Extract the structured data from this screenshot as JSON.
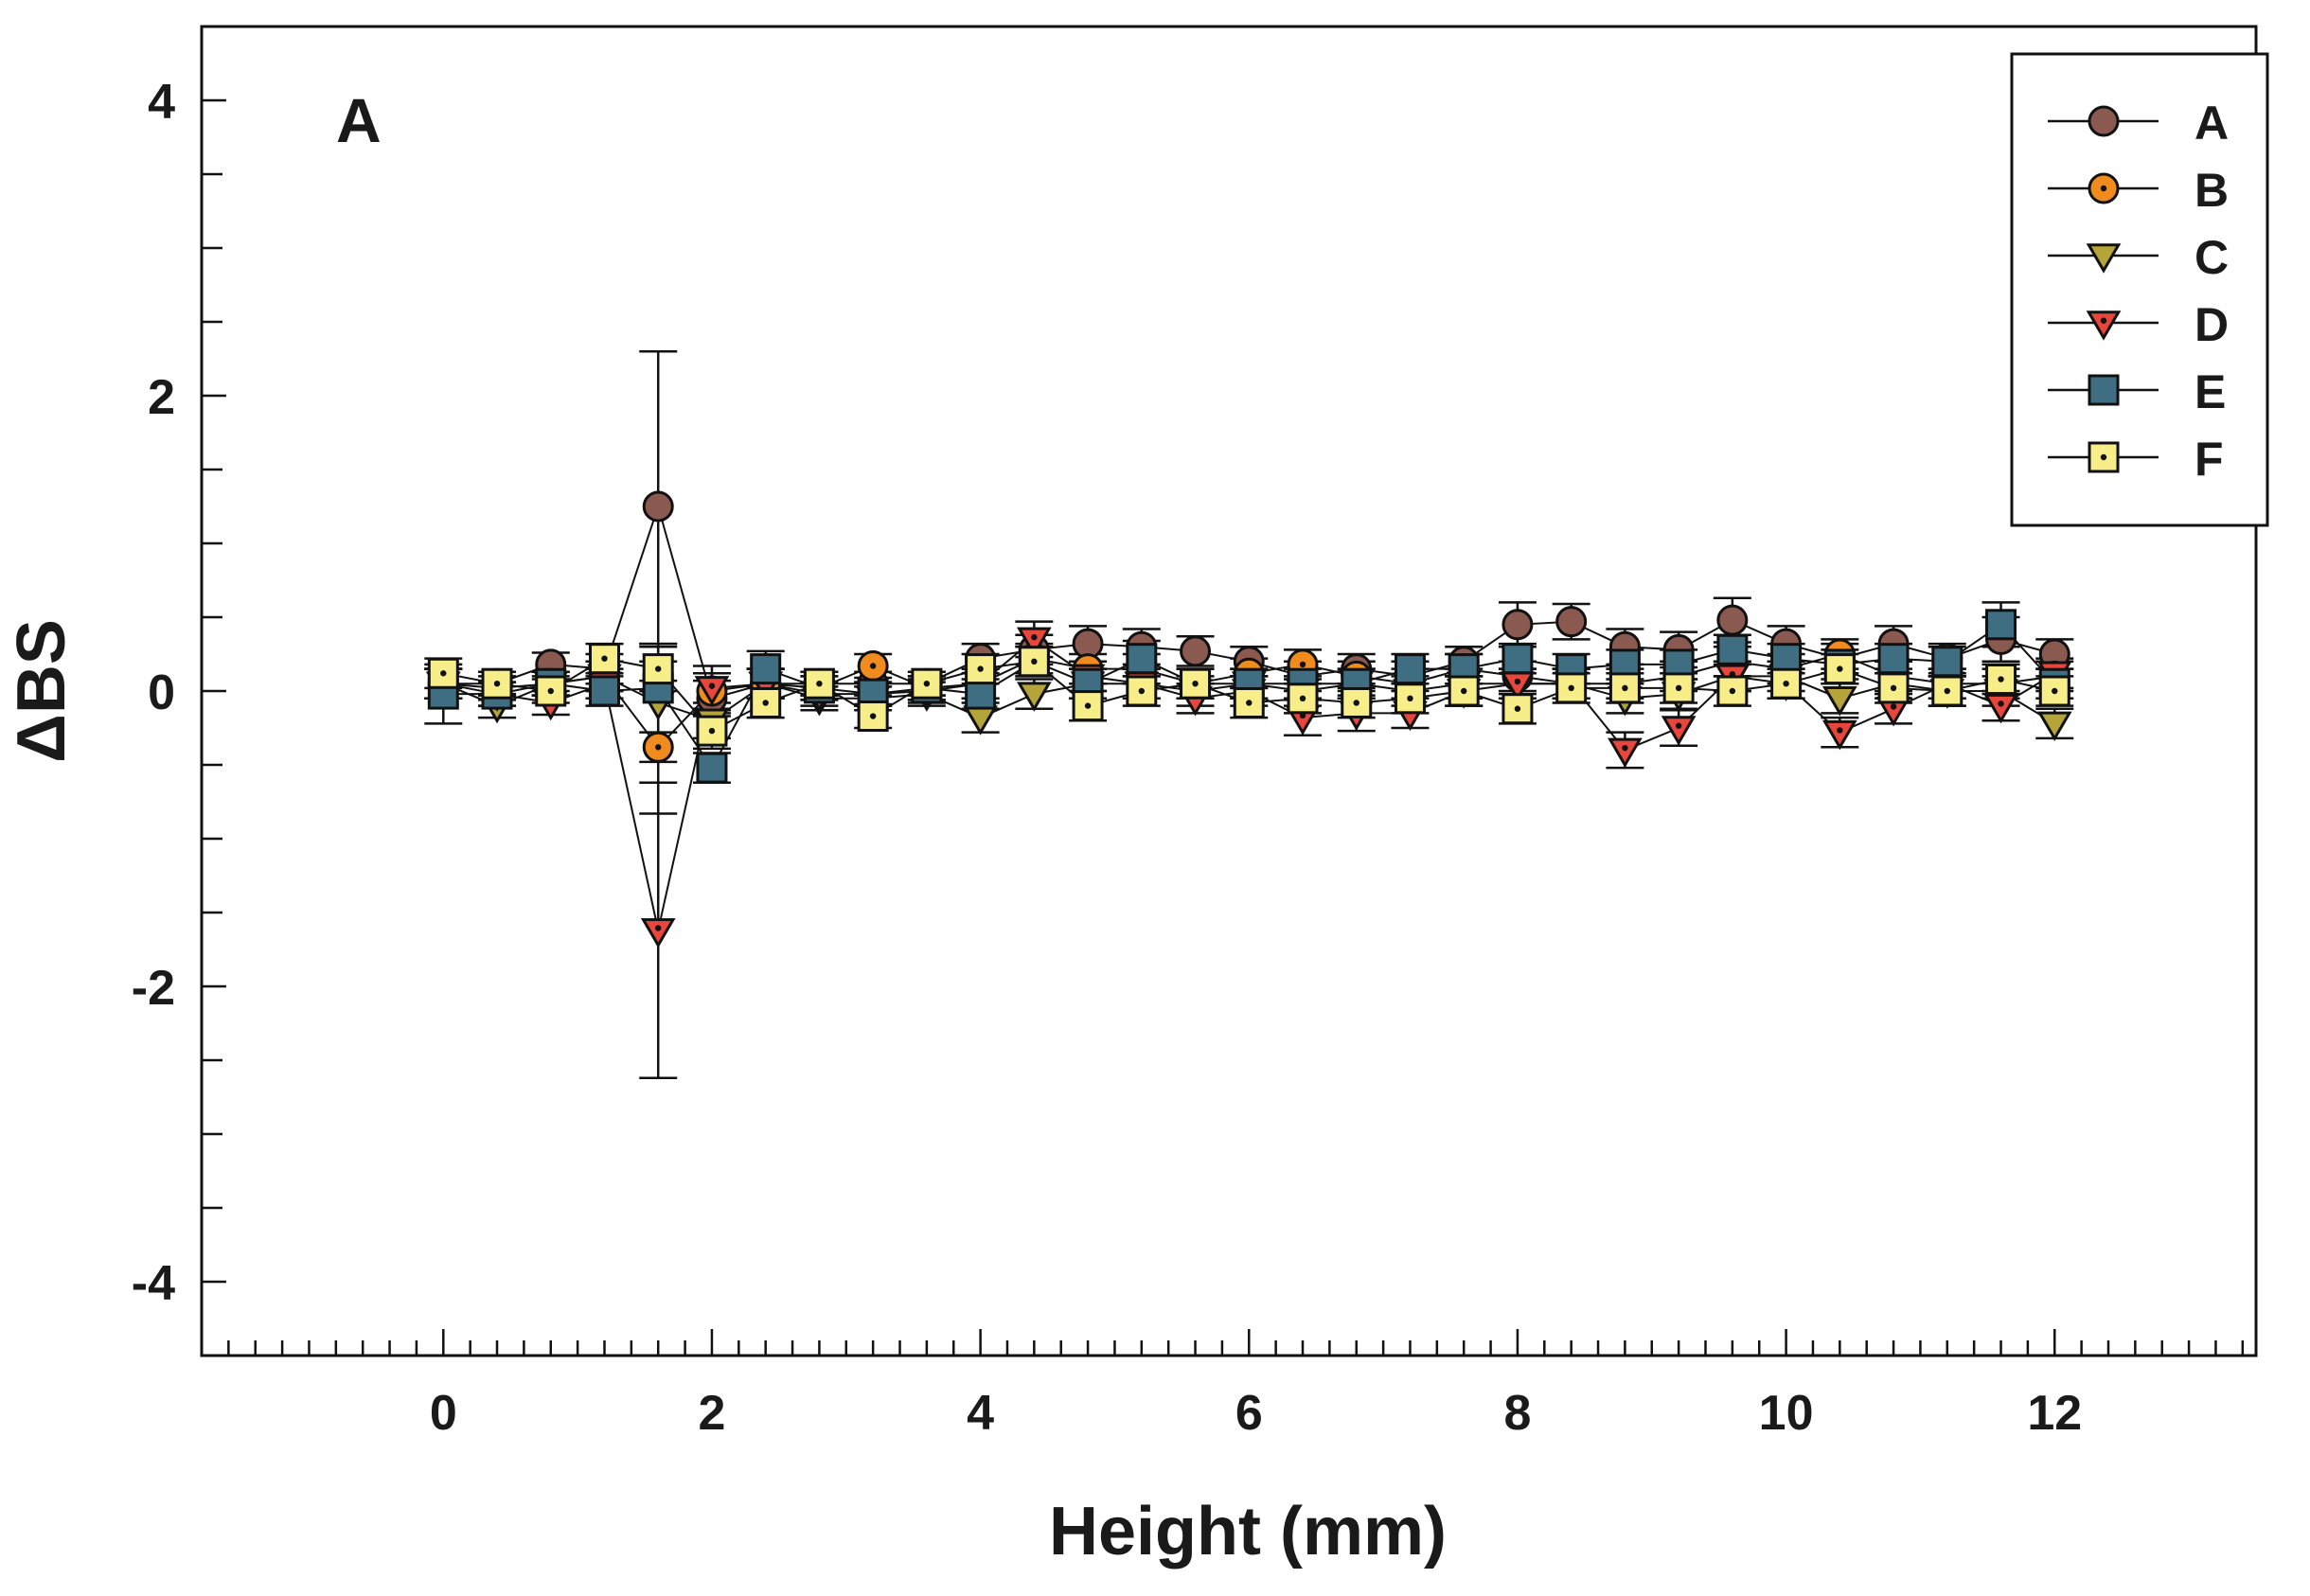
{
  "chart_data": {
    "type": "line",
    "panel_label": "A",
    "xlabel": "Height (mm)",
    "ylabel": "ΔBS",
    "xlim": [
      -1.8,
      13.5
    ],
    "ylim": [
      -4.5,
      4.5
    ],
    "x_ticks": [
      0,
      2,
      4,
      6,
      8,
      10,
      12
    ],
    "y_ticks": [
      4,
      2,
      0,
      -2,
      -4
    ],
    "x_tick_labels": [
      "0",
      "2",
      "4",
      "6",
      "8",
      "10",
      "12"
    ],
    "y_tick_labels": [
      "4",
      "2",
      "0",
      "-2",
      "-4"
    ],
    "legend_position": "top-right",
    "grid": false,
    "x": [
      0,
      0.4,
      0.8,
      1.2,
      1.6,
      2.0,
      2.4,
      2.8,
      3.2,
      3.6,
      4.0,
      4.4,
      4.8,
      5.2,
      5.6,
      6.0,
      6.4,
      6.8,
      7.2,
      7.6,
      8.0,
      8.4,
      8.8,
      9.2,
      9.6,
      10.0,
      10.4,
      10.8,
      11.2,
      11.6,
      12.0
    ],
    "series": [
      {
        "name": "A",
        "marker": "circle",
        "color": "#8a5a50",
        "values": [
          0.05,
          0.05,
          0.18,
          0.15,
          1.25,
          -0.05,
          0.05,
          0.05,
          0.05,
          0.05,
          0.22,
          0.28,
          0.32,
          0.3,
          0.27,
          0.2,
          0.1,
          0.15,
          0.1,
          0.2,
          0.45,
          0.47,
          0.3,
          0.28,
          0.48,
          0.32,
          0.22,
          0.32,
          0.22,
          0.35,
          0.25
        ],
        "errors": [
          0.1,
          0.08,
          0.08,
          0.1,
          1.05,
          0.12,
          0.1,
          0.08,
          0.08,
          0.08,
          0.1,
          0.1,
          0.12,
          0.12,
          0.1,
          0.1,
          0.1,
          0.1,
          0.1,
          0.1,
          0.15,
          0.12,
          0.12,
          0.12,
          0.15,
          0.12,
          0.1,
          0.12,
          0.1,
          0.15,
          0.1
        ]
      },
      {
        "name": "B",
        "marker": "circle-dot",
        "color": "#f08c1e",
        "values": [
          0.05,
          0.02,
          0.05,
          0.1,
          -0.38,
          0.0,
          0.05,
          0.02,
          0.17,
          0.02,
          0.05,
          0.22,
          0.15,
          0.15,
          0.05,
          0.12,
          0.18,
          0.1,
          0.05,
          0.15,
          0.1,
          0.05,
          0.05,
          0.1,
          0.2,
          0.15,
          0.25,
          0.1,
          0.05,
          0.05,
          0.1
        ],
        "errors": [
          0.1,
          0.08,
          0.08,
          0.1,
          0.45,
          0.12,
          0.1,
          0.08,
          0.08,
          0.08,
          0.1,
          0.1,
          0.1,
          0.1,
          0.1,
          0.1,
          0.1,
          0.1,
          0.1,
          0.1,
          0.1,
          0.1,
          0.1,
          0.1,
          0.1,
          0.1,
          0.1,
          0.1,
          0.1,
          0.1,
          0.1
        ]
      },
      {
        "name": "C",
        "marker": "triangle-down",
        "color": "#b5a43a",
        "values": [
          0.05,
          -0.1,
          0.05,
          0.1,
          -0.08,
          -0.2,
          0.05,
          -0.05,
          -0.05,
          -0.02,
          -0.18,
          -0.02,
          0.05,
          0.05,
          0.0,
          0.05,
          0.0,
          0.05,
          0.0,
          0.05,
          0.05,
          0.05,
          -0.05,
          -0.02,
          0.1,
          0.1,
          -0.05,
          0.05,
          0.0,
          0.0,
          -0.22
        ],
        "errors": [
          0.1,
          0.08,
          0.08,
          0.1,
          0.4,
          0.12,
          0.1,
          0.08,
          0.08,
          0.08,
          0.1,
          0.1,
          0.1,
          0.1,
          0.1,
          0.1,
          0.1,
          0.1,
          0.1,
          0.1,
          0.1,
          0.1,
          0.1,
          0.1,
          0.1,
          0.1,
          0.1,
          0.1,
          0.1,
          0.1,
          0.1
        ]
      },
      {
        "name": "D",
        "marker": "triangle-down-dot",
        "color": "#e8463c",
        "values": [
          0.05,
          -0.02,
          -0.08,
          0.05,
          -1.62,
          0.02,
          0.05,
          -0.02,
          -0.02,
          0.0,
          0.05,
          0.35,
          0.1,
          0.05,
          -0.05,
          0.0,
          -0.18,
          -0.15,
          -0.15,
          0.0,
          0.05,
          0.05,
          -0.4,
          -0.25,
          0.1,
          0.05,
          -0.28,
          -0.12,
          0.05,
          -0.1,
          0.12
        ],
        "errors": [
          0.1,
          0.08,
          0.08,
          0.1,
          1.0,
          0.15,
          0.1,
          0.08,
          0.08,
          0.08,
          0.1,
          0.12,
          0.1,
          0.1,
          0.1,
          0.1,
          0.12,
          0.12,
          0.1,
          0.1,
          0.1,
          0.1,
          0.12,
          0.12,
          0.1,
          0.1,
          0.1,
          0.1,
          0.1,
          0.1,
          0.1
        ]
      },
      {
        "name": "E",
        "marker": "square",
        "color": "#3f6e82",
        "values": [
          -0.02,
          -0.02,
          0.05,
          0.0,
          0.02,
          -0.52,
          0.15,
          0.02,
          -0.02,
          0.02,
          -0.02,
          0.2,
          0.05,
          0.22,
          0.05,
          0.05,
          0.05,
          0.05,
          0.15,
          0.15,
          0.22,
          0.15,
          0.18,
          0.18,
          0.28,
          0.22,
          0.18,
          0.22,
          0.2,
          0.45,
          0.05
        ],
        "errors": [
          0.2,
          0.08,
          0.08,
          0.1,
          0.3,
          0.1,
          0.12,
          0.08,
          0.08,
          0.08,
          0.1,
          0.1,
          0.1,
          0.12,
          0.1,
          0.1,
          0.1,
          0.1,
          0.1,
          0.1,
          0.1,
          0.1,
          0.1,
          0.1,
          0.1,
          0.1,
          0.1,
          0.1,
          0.1,
          0.15,
          0.1
        ]
      },
      {
        "name": "F",
        "marker": "square-dot",
        "color": "#f7ee8a",
        "values": [
          0.12,
          0.05,
          0.0,
          0.22,
          0.15,
          -0.27,
          -0.08,
          0.05,
          -0.17,
          0.05,
          0.15,
          0.2,
          -0.1,
          0.0,
          0.05,
          -0.08,
          -0.05,
          -0.08,
          -0.05,
          0.0,
          -0.12,
          0.02,
          0.02,
          0.02,
          0.0,
          0.05,
          0.15,
          0.02,
          0.0,
          0.08,
          0.0
        ],
        "errors": [
          0.1,
          0.08,
          0.08,
          0.1,
          0.15,
          0.12,
          0.1,
          0.08,
          0.08,
          0.08,
          0.1,
          0.1,
          0.1,
          0.1,
          0.1,
          0.1,
          0.1,
          0.1,
          0.1,
          0.1,
          0.1,
          0.1,
          0.1,
          0.1,
          0.1,
          0.1,
          0.1,
          0.1,
          0.1,
          0.1,
          0.1
        ]
      }
    ]
  }
}
